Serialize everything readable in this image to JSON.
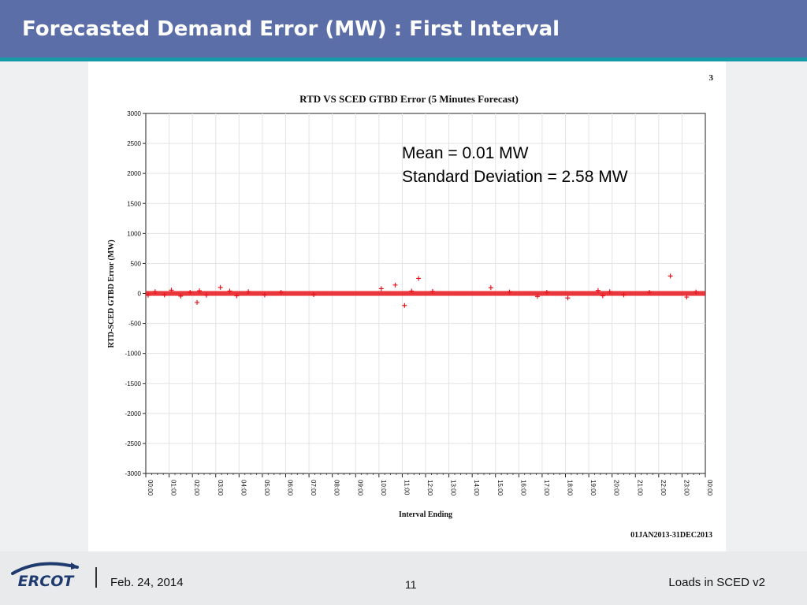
{
  "slide": {
    "title": "Forecasted Demand Error (MW) : First Interval",
    "page_number": "11",
    "date": "Feb. 24, 2014",
    "footer_title": "Loads in SCED v2",
    "logo_text": "ERCOT"
  },
  "colors": {
    "header_bg": "#5b6ea8",
    "accent_teal": "#159aa7",
    "series_red": "#e8141c",
    "logo_navy": "#1f3a6e"
  },
  "chart_data": {
    "type": "scatter",
    "title": "RTD VS SCED GTBD Error (5 Minutes Forecast)",
    "corner_label": "3",
    "xlabel": "Interval Ending",
    "ylabel": "RTD-SCED GTBD Error (MW)",
    "date_range_label": "01JAN2013-31DEC2013",
    "annotations": [
      "Mean = 0.01 MW",
      "Standard Deviation = 2.58 MW"
    ],
    "ylim": [
      -3000,
      3000
    ],
    "yticks": [
      3000,
      2500,
      2000,
      1500,
      1000,
      500,
      0,
      -500,
      -1000,
      -1500,
      -2000,
      -2500,
      -3000
    ],
    "xlim": [
      0,
      24
    ],
    "xtick_labels": [
      "00:00",
      "01:00",
      "02:00",
      "03:00",
      "04:00",
      "05:00",
      "06:00",
      "07:00",
      "08:00",
      "09:00",
      "10:00",
      "11:00",
      "12:00",
      "13:00",
      "14:00",
      "15:00",
      "16:00",
      "17:00",
      "18:00",
      "19:00",
      "20:00",
      "21:00",
      "22:00",
      "23:00",
      "00:00"
    ],
    "grid": true,
    "marker": "+",
    "series": [
      {
        "color": "#e8141c",
        "band": {
          "x_start": 0.0,
          "x_end": 24.0,
          "y_min": -40,
          "y_max": 40
        },
        "points": [
          {
            "x": 0.1,
            "y": -30
          },
          {
            "x": 0.4,
            "y": 30
          },
          {
            "x": 0.8,
            "y": -25
          },
          {
            "x": 1.1,
            "y": 55
          },
          {
            "x": 1.5,
            "y": -45
          },
          {
            "x": 1.9,
            "y": 20
          },
          {
            "x": 2.3,
            "y": 45
          },
          {
            "x": 2.2,
            "y": -150
          },
          {
            "x": 2.6,
            "y": -30
          },
          {
            "x": 3.2,
            "y": 100
          },
          {
            "x": 3.6,
            "y": 40
          },
          {
            "x": 3.9,
            "y": -40
          },
          {
            "x": 4.4,
            "y": 30
          },
          {
            "x": 5.1,
            "y": -25
          },
          {
            "x": 5.8,
            "y": 20
          },
          {
            "x": 7.2,
            "y": -20
          },
          {
            "x": 10.1,
            "y": 80
          },
          {
            "x": 10.7,
            "y": 140
          },
          {
            "x": 11.1,
            "y": -200
          },
          {
            "x": 11.4,
            "y": 40
          },
          {
            "x": 11.7,
            "y": 250
          },
          {
            "x": 12.3,
            "y": 35
          },
          {
            "x": 14.8,
            "y": 95
          },
          {
            "x": 15.6,
            "y": 25
          },
          {
            "x": 16.8,
            "y": -50
          },
          {
            "x": 17.2,
            "y": 20
          },
          {
            "x": 18.1,
            "y": -75
          },
          {
            "x": 19.4,
            "y": 50
          },
          {
            "x": 19.6,
            "y": -40
          },
          {
            "x": 19.9,
            "y": 30
          },
          {
            "x": 20.5,
            "y": -25
          },
          {
            "x": 21.6,
            "y": 20
          },
          {
            "x": 22.5,
            "y": 290
          },
          {
            "x": 23.2,
            "y": -60
          },
          {
            "x": 23.6,
            "y": 25
          }
        ]
      }
    ]
  }
}
